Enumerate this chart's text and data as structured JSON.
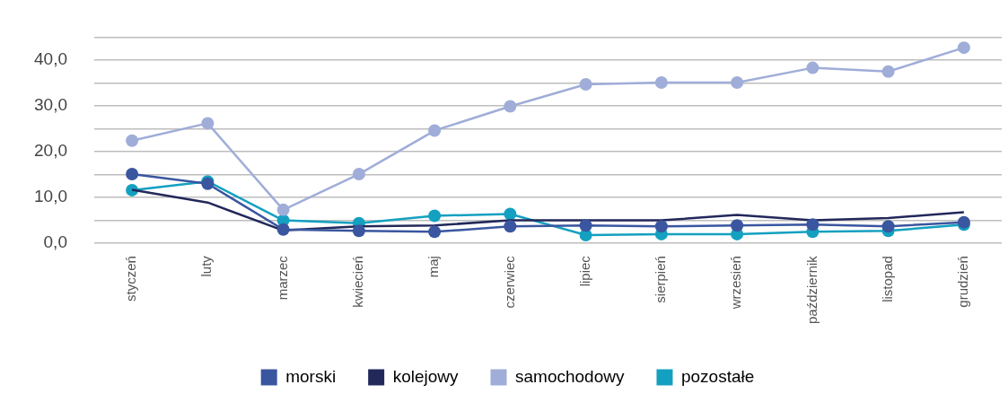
{
  "chart_data": {
    "type": "line",
    "categories": [
      "styczeń",
      "luty",
      "marzec",
      "kwiecień",
      "maj",
      "czerwiec",
      "lipiec",
      "sierpień",
      "wrzesień",
      "październik",
      "listopad",
      "grudzień"
    ],
    "series": [
      {
        "name": "morski",
        "color": "#3a56a0",
        "marker": "circle",
        "values": [
          15.1,
          13.0,
          3.0,
          2.7,
          2.5,
          3.7,
          3.9,
          3.7,
          3.9,
          4.1,
          3.7,
          4.6
        ]
      },
      {
        "name": "kolejowy",
        "color": "#22285a",
        "marker": "none",
        "values": [
          11.7,
          8.9,
          2.8,
          3.7,
          3.9,
          5.0,
          5.0,
          5.0,
          6.2,
          5.0,
          5.5,
          6.8
        ]
      },
      {
        "name": "samochodowy",
        "color": "#9fadd8",
        "marker": "circle",
        "values": [
          22.4,
          26.2,
          7.3,
          15.1,
          24.6,
          29.9,
          34.7,
          35.1,
          35.1,
          38.3,
          37.5,
          42.7
        ]
      },
      {
        "name": "pozostałe",
        "color": "#14a0c0",
        "marker": "circle",
        "values": [
          11.6,
          13.5,
          5.0,
          4.4,
          6.0,
          6.4,
          1.8,
          2.0,
          2.0,
          2.5,
          2.7,
          4.1
        ]
      }
    ],
    "ylim": [
      0,
      45
    ],
    "yticks": [
      {
        "value": 0,
        "label": "0,0"
      },
      {
        "value": 5,
        "label": null
      },
      {
        "value": 10,
        "label": "10,0"
      },
      {
        "value": 15,
        "label": null
      },
      {
        "value": 20,
        "label": "20,0"
      },
      {
        "value": 25,
        "label": null
      },
      {
        "value": 30,
        "label": "30,0"
      },
      {
        "value": 35,
        "label": null
      },
      {
        "value": 40,
        "label": "40,0"
      },
      {
        "value": 45,
        "label": null
      }
    ],
    "grid": "y",
    "legend": "bottom",
    "line_style": "solid"
  }
}
